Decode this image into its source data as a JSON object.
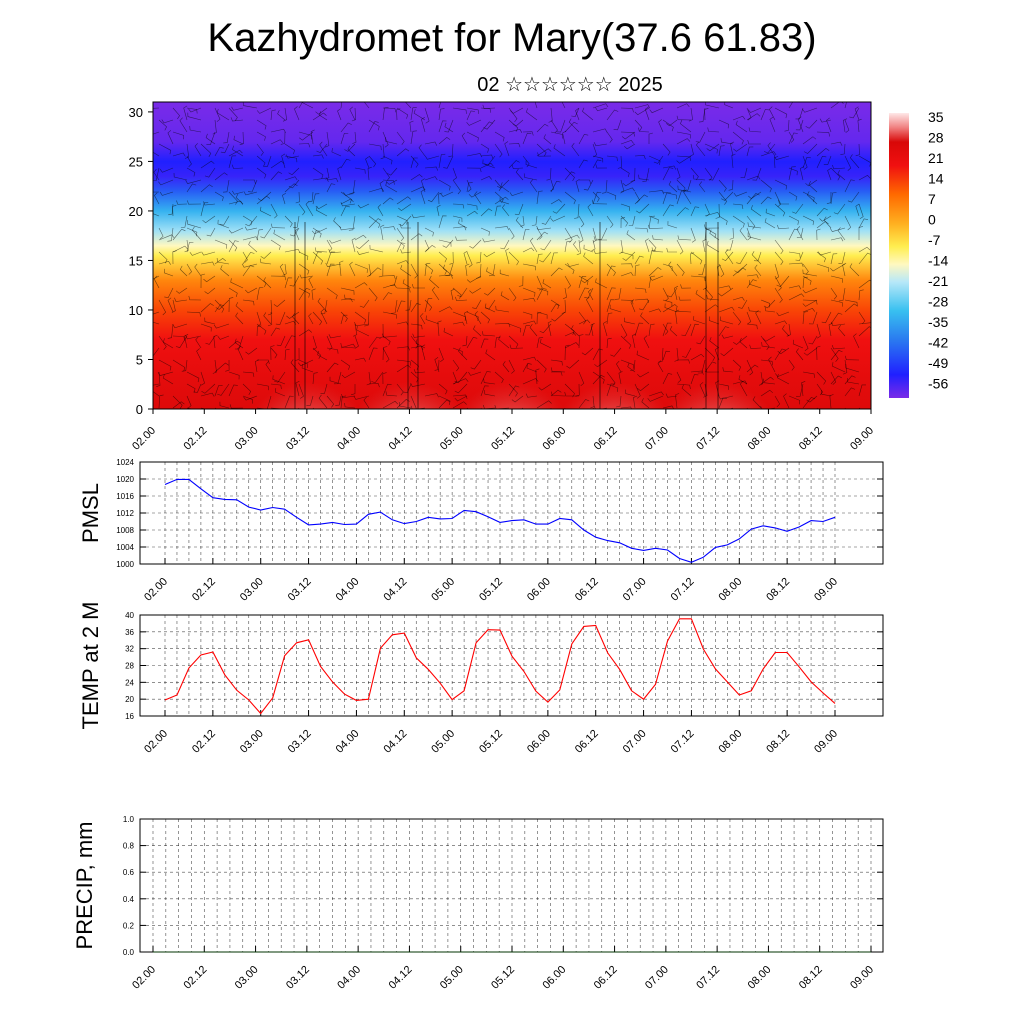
{
  "title": "Kazhydromet for Mary(37.6 61.83)",
  "subtitle": "02 ☆☆☆☆☆☆ 2025",
  "time_ticks": [
    "02.00",
    "02.12",
    "03.00",
    "03.12",
    "04.00",
    "04.12",
    "05.00",
    "05.12",
    "06.00",
    "06.12",
    "07.00",
    "07.12",
    "08.00",
    "08.12",
    "09.00"
  ],
  "colors": {
    "pmsl_line": "#0000ff",
    "temp_line": "#ff0000",
    "precip_line": "#003300",
    "grid": "#000000"
  },
  "chart_data": [
    {
      "type": "heatmap",
      "title": "Kazhydromet for Mary(37.6 61.83)",
      "subtitle": "02 ☆☆☆☆☆☆ 2025",
      "xlabel": "",
      "ylabel": "",
      "x": [
        "02.00",
        "02.12",
        "03.00",
        "03.12",
        "04.00",
        "04.12",
        "05.00",
        "05.12",
        "06.00",
        "06.12",
        "07.00",
        "07.12",
        "08.00",
        "08.12",
        "09.00"
      ],
      "ylim": [
        0,
        31
      ],
      "yticks": [
        0,
        5,
        10,
        15,
        20,
        25,
        30
      ],
      "colorbar_labels": [
        "35",
        "28",
        "21",
        "14",
        "7",
        "0",
        "-7",
        "-14",
        "-21",
        "-28",
        "-35",
        "-42",
        "-49",
        "-56"
      ],
      "colorbar_range": [
        -60,
        38
      ],
      "description_layers": "temperature shading with wind barbs",
      "warm_cores": [
        {
          "x": "03.12",
          "value": 35
        },
        {
          "x": "04.12",
          "value": 35
        },
        {
          "x": "05.12",
          "value": 35
        },
        {
          "x": "06.12",
          "value": 33
        },
        {
          "x": "07.12",
          "value": 35
        }
      ]
    },
    {
      "type": "line",
      "ylabel": "PMSL",
      "ylim": [
        1000,
        1024
      ],
      "yticks": [
        1000,
        1004,
        1008,
        1012,
        1016,
        1020,
        1024
      ],
      "grid": true,
      "x": [
        "02.00",
        "02.03",
        "02.06",
        "02.09",
        "02.12",
        "02.15",
        "02.18",
        "02.21",
        "03.00",
        "03.03",
        "03.06",
        "03.09",
        "03.12",
        "03.15",
        "03.18",
        "03.21",
        "04.00",
        "04.03",
        "04.06",
        "04.09",
        "04.12",
        "04.15",
        "04.18",
        "04.21",
        "05.00",
        "05.03",
        "05.06",
        "05.09",
        "05.12",
        "05.15",
        "05.18",
        "05.21",
        "06.00",
        "06.03",
        "06.06",
        "06.09",
        "06.12",
        "06.15",
        "06.18",
        "06.21",
        "07.00",
        "07.03",
        "07.06",
        "07.09",
        "07.12",
        "07.15",
        "07.18",
        "07.21",
        "08.00",
        "08.03",
        "08.06",
        "08.09",
        "08.12",
        "08.15",
        "08.18",
        "08.21",
        "09.00"
      ],
      "series": [
        {
          "values": [
            1018.7,
            1019.9,
            1019.9,
            1017.7,
            1015.6,
            1015.2,
            1015.1,
            1013.4,
            1012.7,
            1013.3,
            1012.9,
            1011.0,
            1009.2,
            1009.4,
            1009.8,
            1009.3,
            1009.4,
            1011.7,
            1012.2,
            1010.4,
            1009.5,
            1010.0,
            1011.0,
            1010.6,
            1010.7,
            1012.6,
            1012.3,
            1011.1,
            1009.8,
            1010.2,
            1010.4,
            1009.4,
            1009.4,
            1010.7,
            1010.4,
            1008.0,
            1006.3,
            1005.5,
            1005.0,
            1003.7,
            1003.2,
            1003.7,
            1003.3,
            1001.3,
            1000.4,
            1001.6,
            1003.9,
            1004.5,
            1005.9,
            1008.2,
            1009.0,
            1008.5,
            1007.7,
            1008.7,
            1010.2,
            1010.0,
            1011.0
          ]
        }
      ]
    },
    {
      "type": "line",
      "ylabel": "TEMP at 2 M",
      "ylim": [
        16,
        40
      ],
      "yticks": [
        16,
        20,
        24,
        28,
        32,
        36,
        40
      ],
      "grid": true,
      "x": [
        "02.00",
        "02.03",
        "02.06",
        "02.09",
        "02.12",
        "02.15",
        "02.18",
        "02.21",
        "03.00",
        "03.03",
        "03.06",
        "03.09",
        "03.12",
        "03.15",
        "03.18",
        "03.21",
        "04.00",
        "04.03",
        "04.06",
        "04.09",
        "04.12",
        "04.15",
        "04.18",
        "04.21",
        "05.00",
        "05.03",
        "05.06",
        "05.09",
        "05.12",
        "05.15",
        "05.18",
        "05.21",
        "06.00",
        "06.03",
        "06.06",
        "06.09",
        "06.12",
        "06.15",
        "06.18",
        "06.21",
        "07.00",
        "07.03",
        "07.06",
        "07.09",
        "07.12",
        "07.15",
        "07.18",
        "07.21",
        "08.00",
        "08.03",
        "08.06",
        "08.09",
        "08.12",
        "08.15",
        "08.18",
        "08.21",
        "09.00"
      ],
      "series": [
        {
          "values": [
            19.8,
            21.0,
            27.4,
            30.5,
            31.2,
            25.8,
            22.1,
            19.8,
            16.6,
            20.3,
            30.3,
            33.4,
            34.1,
            27.8,
            24.1,
            21.2,
            19.7,
            20.0,
            32.1,
            35.3,
            35.7,
            29.8,
            27.1,
            23.8,
            19.9,
            22.0,
            33.4,
            36.5,
            36.4,
            30.2,
            26.6,
            21.9,
            19.3,
            22.2,
            33.1,
            37.3,
            37.5,
            31.0,
            27.1,
            22.0,
            20.0,
            23.5,
            33.8,
            39.1,
            39.1,
            31.9,
            27.2,
            24.1,
            21.0,
            22.0,
            27.2,
            31.1,
            31.1,
            27.7,
            24.1,
            21.5,
            19.0
          ]
        }
      ]
    },
    {
      "type": "line",
      "ylabel": "PRECIP, mm",
      "ylim": [
        0,
        1.0
      ],
      "yticks": [
        "0.0",
        "0.2",
        "0.4",
        "0.6",
        "0.8",
        "1.0"
      ],
      "grid": true,
      "x": [
        "02.00",
        "02.12",
        "03.00",
        "03.12",
        "04.00",
        "04.12",
        "05.00",
        "05.12",
        "06.00",
        "06.12",
        "07.00",
        "07.12",
        "08.00",
        "08.12",
        "09.00"
      ],
      "series": [
        {
          "values": [
            0,
            0,
            0,
            0,
            0,
            0,
            0,
            0,
            0,
            0,
            0,
            0,
            0,
            0,
            0
          ]
        }
      ]
    }
  ]
}
